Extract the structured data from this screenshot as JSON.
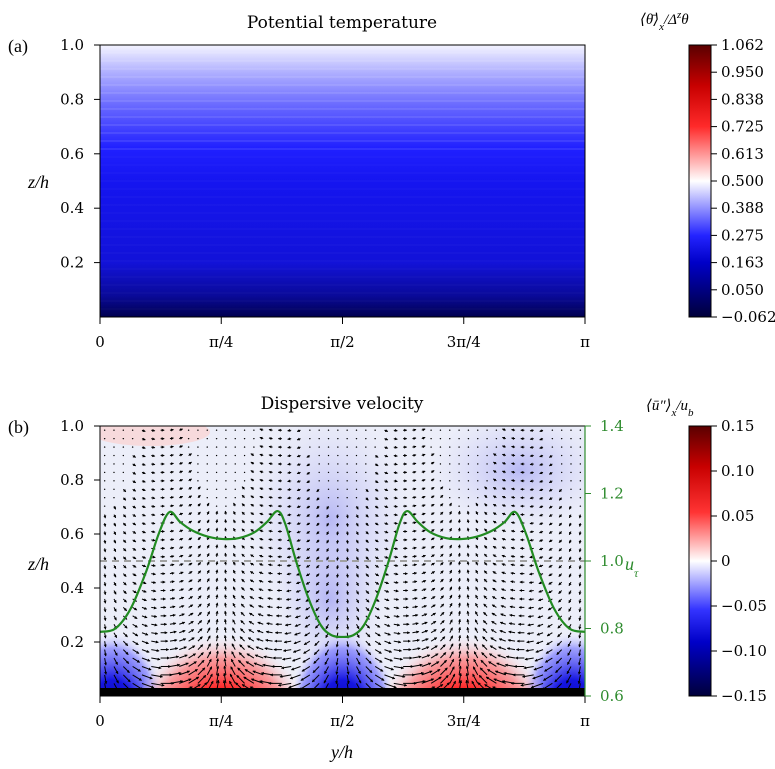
{
  "chart_data": [
    {
      "type": "heatmap",
      "panel_label": "(a)",
      "title": "Potential temperature",
      "xlabel": "",
      "ylabel": "z/h",
      "xlim": [
        0,
        3.1416
      ],
      "ylim": [
        0,
        1.0
      ],
      "x_ticks": [
        "0",
        "π/4",
        "π/2",
        "3π/4",
        "π"
      ],
      "y_ticks": [
        "0.2",
        "0.4",
        "0.6",
        "0.8",
        "1.0"
      ],
      "colorbar": {
        "label_main": "⟨θ̄⟩",
        "label_sub": "x",
        "label_rest": "/Δ",
        "label_sup": "z",
        "label_end": "θ",
        "ticks": [
          "1.062",
          "0.950",
          "0.838",
          "0.725",
          "0.613",
          "0.500",
          "0.388",
          "0.275",
          "0.163",
          "0.050",
          "−0.062"
        ],
        "range": [
          -0.062,
          1.062
        ]
      },
      "profile": [
        {
          "z": 0.0,
          "value": 0.0
        },
        {
          "z": 0.1,
          "value": 0.16
        },
        {
          "z": 0.2,
          "value": 0.2
        },
        {
          "z": 0.4,
          "value": 0.22
        },
        {
          "z": 0.6,
          "value": 0.25
        },
        {
          "z": 0.7,
          "value": 0.33
        },
        {
          "z": 0.8,
          "value": 0.4
        },
        {
          "z": 0.9,
          "value": 0.46
        },
        {
          "z": 1.0,
          "value": 0.5
        }
      ]
    },
    {
      "type": "heatmap",
      "panel_label": "(b)",
      "title": "Dispersive velocity",
      "xlabel": "y/h",
      "ylabel": "z/h",
      "y2label_main": "u",
      "y2label_sub": "τ",
      "xlim": [
        0,
        3.1416
      ],
      "ylim": [
        0,
        1.0
      ],
      "y2lim": [
        0.6,
        1.4
      ],
      "x_ticks": [
        "0",
        "π/4",
        "π/2",
        "3π/4",
        "π"
      ],
      "y_ticks": [
        "0.2",
        "0.4",
        "0.6",
        "0.8",
        "1.0"
      ],
      "y2_ticks": [
        "0.6",
        "0.8",
        "1.0",
        "1.2",
        "1.4"
      ],
      "dashed_line_z": 0.5,
      "colorbar": {
        "label_main": "⟨ū″⟩",
        "label_sub": "x",
        "label_rest": "/u",
        "label_sub2": "b",
        "ticks": [
          "0.15",
          "0.10",
          "0.05",
          "0",
          "−0.05",
          "−0.10",
          "−0.15"
        ],
        "range": [
          -0.15,
          0.15
        ]
      },
      "u_tau_curve": [
        {
          "y": 0.0,
          "u": 0.79
        },
        {
          "y": 0.1,
          "u": 0.8
        },
        {
          "y": 0.2,
          "u": 0.86
        },
        {
          "y": 0.3,
          "u": 0.97
        },
        {
          "y": 0.38,
          "u": 1.08
        },
        {
          "y": 0.45,
          "u": 1.145
        },
        {
          "y": 0.52,
          "u": 1.115
        },
        {
          "y": 0.6,
          "u": 1.09
        },
        {
          "y": 0.7,
          "u": 1.072
        },
        {
          "y": 0.8,
          "u": 1.065
        },
        {
          "y": 0.9,
          "u": 1.068
        },
        {
          "y": 1.0,
          "u": 1.085
        },
        {
          "y": 1.08,
          "u": 1.115
        },
        {
          "y": 1.15,
          "u": 1.148
        },
        {
          "y": 1.2,
          "u": 1.11
        },
        {
          "y": 1.27,
          "u": 1.0
        },
        {
          "y": 1.35,
          "u": 0.89
        },
        {
          "y": 1.43,
          "u": 0.81
        },
        {
          "y": 1.5,
          "u": 0.78
        },
        {
          "y": 1.571,
          "u": 0.775
        },
        {
          "y": 1.64,
          "u": 0.78
        },
        {
          "y": 1.71,
          "u": 0.81
        },
        {
          "y": 1.79,
          "u": 0.89
        },
        {
          "y": 1.87,
          "u": 1.0
        },
        {
          "y": 1.94,
          "u": 1.11
        },
        {
          "y": 1.99,
          "u": 1.148
        },
        {
          "y": 2.06,
          "u": 1.115
        },
        {
          "y": 2.14,
          "u": 1.085
        },
        {
          "y": 2.24,
          "u": 1.068
        },
        {
          "y": 2.34,
          "u": 1.065
        },
        {
          "y": 2.44,
          "u": 1.072
        },
        {
          "y": 2.54,
          "u": 1.09
        },
        {
          "y": 2.62,
          "u": 1.115
        },
        {
          "y": 2.69,
          "u": 1.145
        },
        {
          "y": 2.76,
          "u": 1.08
        },
        {
          "y": 2.84,
          "u": 0.97
        },
        {
          "y": 2.94,
          "u": 0.86
        },
        {
          "y": 3.04,
          "u": 0.8
        },
        {
          "y": 3.1416,
          "u": 0.79
        }
      ],
      "field": {
        "red_lobes_y": [
          0.785,
          2.356
        ],
        "blue_lobes_y": [
          0.08,
          1.571,
          3.06
        ],
        "near_wall_extent_z": 0.25,
        "peak_value": 0.15,
        "min_value": -0.15
      }
    }
  ]
}
